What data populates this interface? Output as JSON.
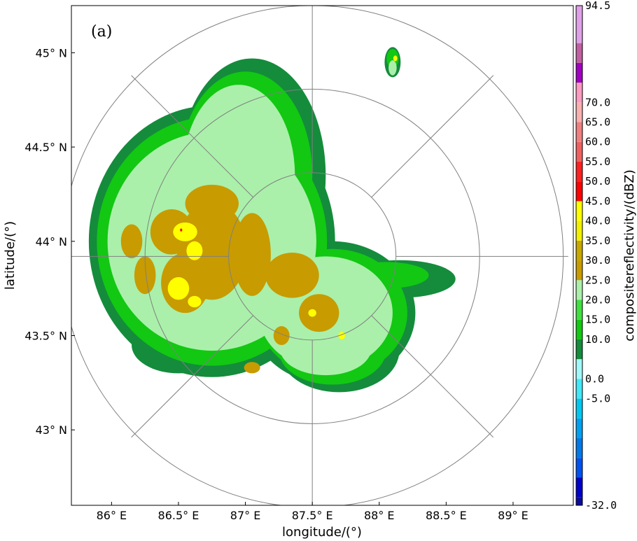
{
  "chart_data": {
    "type": "heatmap",
    "panel_label": "(a)",
    "xlabel": "longitude/(°)",
    "ylabel": "latitude/(°)",
    "colorbar_label": "compositereflectivity/(dBZ)",
    "xlim": [
      85.7,
      89.45
    ],
    "ylim": [
      42.6,
      45.25
    ],
    "x_ticks": [
      {
        "value": 86.0,
        "label": "86° E"
      },
      {
        "value": 86.5,
        "label": "86.5° E"
      },
      {
        "value": 87.0,
        "label": "87° E"
      },
      {
        "value": 87.5,
        "label": "87.5° E"
      },
      {
        "value": 88.0,
        "label": "88° E"
      },
      {
        "value": 88.5,
        "label": "88.5° E"
      },
      {
        "value": 89.0,
        "label": "89° E"
      }
    ],
    "y_ticks": [
      {
        "value": 43.0,
        "label": "43° N"
      },
      {
        "value": 43.5,
        "label": "43.5° N"
      },
      {
        "value": 44.0,
        "label": "44° N"
      },
      {
        "value": 44.5,
        "label": "44.5° N"
      },
      {
        "value": 45.0,
        "label": "45° N"
      }
    ],
    "radar_center": {
      "lon": 87.5,
      "lat": 43.92
    },
    "range_ring_count": 3,
    "radial_line_count": 8,
    "colorbar": {
      "min": -32.0,
      "max": 94.5,
      "levels": [
        -32.0,
        -30,
        -25,
        -20,
        -15,
        -10,
        -5.0,
        0.0,
        5,
        10.0,
        15.0,
        20.0,
        25.0,
        30.0,
        35.0,
        40.0,
        45.0,
        50.0,
        55.0,
        60.0,
        65.0,
        70.0,
        75,
        80,
        85,
        94.5
      ],
      "colors": [
        "#0a0a9a",
        "#0000c8",
        "#0050f0",
        "#0078e8",
        "#00a0f0",
        "#00c8f0",
        "#40e8f8",
        "#a0f8f8",
        "#148c3c",
        "#12c812",
        "#40e040",
        "#aaf0aa",
        "#c89b00",
        "#c8a800",
        "#f0f000",
        "#ffff00",
        "#ff0000",
        "#ff2020",
        "#f06060",
        "#f08080",
        "#f8b0b0",
        "#ff9ac0",
        "#a000c0",
        "#c060a0",
        "#e0a0e8"
      ],
      "tick_labels": [
        {
          "value": 94.5,
          "label": "94.5"
        },
        {
          "value": 70.0,
          "label": "70.0"
        },
        {
          "value": 65.0,
          "label": "65.0"
        },
        {
          "value": 60.0,
          "label": "60.0"
        },
        {
          "value": 55.0,
          "label": "55.0"
        },
        {
          "value": 50.0,
          "label": "50.0"
        },
        {
          "value": 45.0,
          "label": "45.0"
        },
        {
          "value": 40.0,
          "label": "40.0"
        },
        {
          "value": 35.0,
          "label": "35.0"
        },
        {
          "value": 30.0,
          "label": "30.0"
        },
        {
          "value": 25.0,
          "label": "25.0"
        },
        {
          "value": 20.0,
          "label": "20.0"
        },
        {
          "value": 15.0,
          "label": "15.0"
        },
        {
          "value": 10.0,
          "label": "10.0"
        },
        {
          "value": 0.0,
          "label": "0.0"
        },
        {
          "value": -5.0,
          "label": "-5.0"
        },
        {
          "value": -32.0,
          "label": "-32.0"
        }
      ]
    },
    "echo_layers": [
      {
        "dbz": 10,
        "color": "#148c3c",
        "blobs": [
          {
            "lon": 86.75,
            "lat": 44.0,
            "rlon": 0.92,
            "rlat": 0.72
          },
          {
            "lon": 87.05,
            "lat": 44.35,
            "rlon": 0.55,
            "rlat": 0.62
          },
          {
            "lon": 87.65,
            "lat": 43.62,
            "rlon": 0.62,
            "rlat": 0.38
          },
          {
            "lon": 87.7,
            "lat": 43.42,
            "rlon": 0.45,
            "rlat": 0.22
          },
          {
            "lon": 88.15,
            "lat": 43.8,
            "rlon": 0.42,
            "rlat": 0.1
          },
          {
            "lon": 88.1,
            "lat": 44.95,
            "rlon": 0.06,
            "rlat": 0.08
          },
          {
            "lon": 86.5,
            "lat": 43.45,
            "rlon": 0.35,
            "rlat": 0.15
          }
        ]
      },
      {
        "dbz": 15,
        "color": "#12c812",
        "blobs": [
          {
            "lon": 86.75,
            "lat": 44.0,
            "rlon": 0.86,
            "rlat": 0.66
          },
          {
            "lon": 87.0,
            "lat": 44.35,
            "rlon": 0.5,
            "rlat": 0.55
          },
          {
            "lon": 87.65,
            "lat": 43.62,
            "rlon": 0.56,
            "rlat": 0.34
          },
          {
            "lon": 87.65,
            "lat": 43.42,
            "rlon": 0.4,
            "rlat": 0.18
          },
          {
            "lon": 88.05,
            "lat": 43.82,
            "rlon": 0.32,
            "rlat": 0.07
          },
          {
            "lon": 88.1,
            "lat": 44.97,
            "rlon": 0.045,
            "rlat": 0.05
          }
        ]
      },
      {
        "dbz": 20,
        "color": "#aaf0aa",
        "blobs": [
          {
            "lon": 86.75,
            "lat": 44.0,
            "rlon": 0.78,
            "rlat": 0.58
          },
          {
            "lon": 86.95,
            "lat": 44.35,
            "rlon": 0.42,
            "rlat": 0.48
          },
          {
            "lon": 87.6,
            "lat": 43.62,
            "rlon": 0.5,
            "rlat": 0.3
          },
          {
            "lon": 87.6,
            "lat": 43.43,
            "rlon": 0.34,
            "rlat": 0.14
          },
          {
            "lon": 88.1,
            "lat": 44.92,
            "rlon": 0.03,
            "rlat": 0.04
          }
        ]
      },
      {
        "dbz": 25,
        "color": "#c89b00",
        "blobs": [
          {
            "lon": 86.45,
            "lat": 44.05,
            "rlon": 0.16,
            "rlat": 0.12
          },
          {
            "lon": 86.75,
            "lat": 43.95,
            "rlon": 0.26,
            "rlat": 0.26
          },
          {
            "lon": 86.75,
            "lat": 44.2,
            "rlon": 0.2,
            "rlat": 0.1
          },
          {
            "lon": 86.55,
            "lat": 43.78,
            "rlon": 0.18,
            "rlat": 0.16
          },
          {
            "lon": 87.05,
            "lat": 43.93,
            "rlon": 0.14,
            "rlat": 0.22
          },
          {
            "lon": 87.35,
            "lat": 43.82,
            "rlon": 0.2,
            "rlat": 0.12
          },
          {
            "lon": 87.55,
            "lat": 43.62,
            "rlon": 0.15,
            "rlat": 0.1
          },
          {
            "lon": 86.15,
            "lat": 44.0,
            "rlon": 0.08,
            "rlat": 0.09
          },
          {
            "lon": 87.27,
            "lat": 43.5,
            "rlon": 0.06,
            "rlat": 0.05
          },
          {
            "lon": 87.05,
            "lat": 43.33,
            "rlon": 0.06,
            "rlat": 0.03
          },
          {
            "lon": 86.25,
            "lat": 43.82,
            "rlon": 0.08,
            "rlat": 0.1
          }
        ]
      },
      {
        "dbz": 35,
        "color": "#ffff00",
        "blobs": [
          {
            "lon": 86.55,
            "lat": 44.05,
            "rlon": 0.09,
            "rlat": 0.05
          },
          {
            "lon": 86.62,
            "lat": 43.95,
            "rlon": 0.06,
            "rlat": 0.05
          },
          {
            "lon": 86.5,
            "lat": 43.75,
            "rlon": 0.08,
            "rlat": 0.06
          },
          {
            "lon": 86.62,
            "lat": 43.68,
            "rlon": 0.05,
            "rlat": 0.03
          },
          {
            "lon": 87.5,
            "lat": 43.62,
            "rlon": 0.03,
            "rlat": 0.02
          },
          {
            "lon": 87.72,
            "lat": 43.5,
            "rlon": 0.025,
            "rlat": 0.02
          },
          {
            "lon": 88.12,
            "lat": 44.97,
            "rlon": 0.015,
            "rlat": 0.015
          }
        ]
      },
      {
        "dbz": 50,
        "color": "#ff0000",
        "blobs": [
          {
            "lon": 86.52,
            "lat": 44.06,
            "rlon": 0.008,
            "rlat": 0.008
          }
        ]
      }
    ]
  }
}
